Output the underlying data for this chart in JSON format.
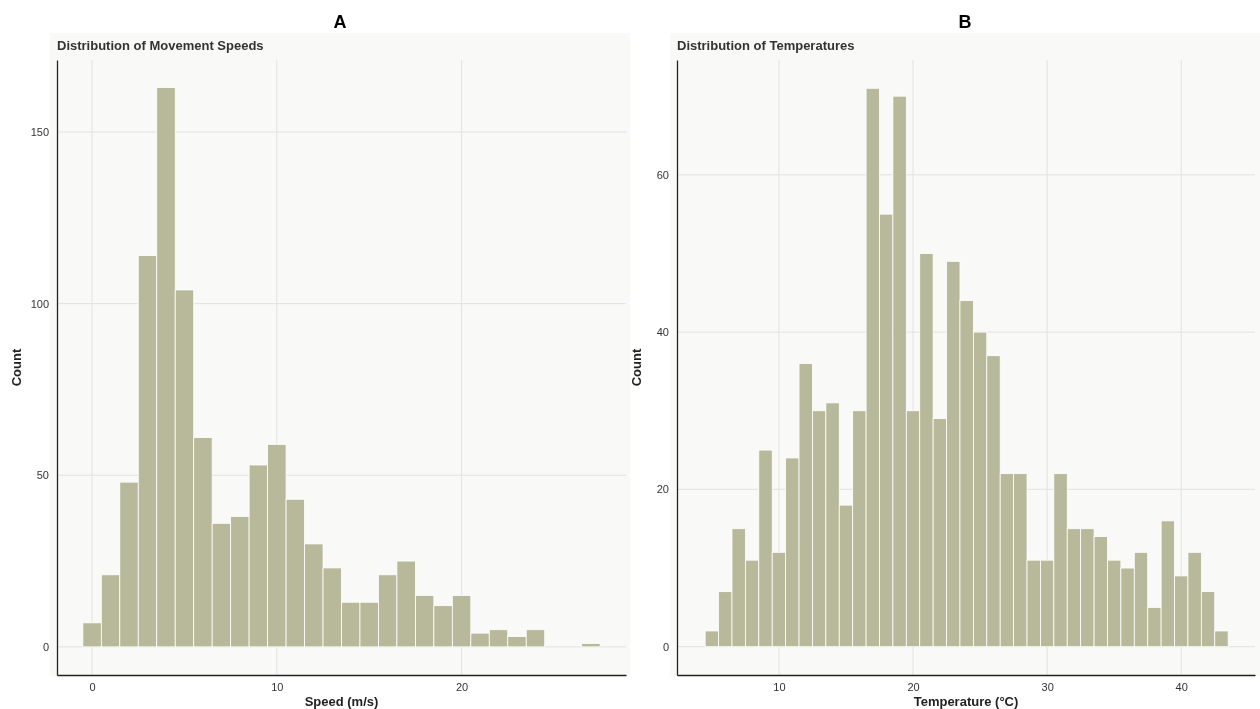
{
  "chart_data": [
    {
      "type": "histogram",
      "title": "A",
      "subtitle": "Distribution of Movement Speeds",
      "xlabel": "Speed (m/s)",
      "ylabel": "Count",
      "color": "#b7b99a",
      "grid": true,
      "bins": [
        -0.5,
        0.5,
        1.5,
        2.5,
        3.5,
        4.5,
        5.5,
        6.5,
        7.5,
        8.5,
        9.5,
        10.5,
        11.5,
        12.5,
        13.5,
        14.5,
        15.5,
        16.5,
        17.5,
        18.5,
        19.5,
        20.5,
        21.5,
        22.5,
        23.5,
        24.5,
        25.5,
        26.5,
        27.5
      ],
      "values": [
        7,
        21,
        48,
        114,
        163,
        104,
        61,
        36,
        38,
        53,
        59,
        43,
        30,
        23,
        13,
        13,
        21,
        25,
        15,
        12,
        15,
        4,
        5,
        3,
        5,
        0,
        0,
        1
      ],
      "xlim": [
        -1.9,
        28.9
      ],
      "ylim": [
        -8.2,
        171
      ],
      "xticks": [
        0,
        10,
        20
      ],
      "yticks": [
        0,
        50,
        100,
        150
      ]
    },
    {
      "type": "histogram",
      "title": "B",
      "subtitle": "Distribution of Temperatures",
      "xlabel": "Temperature (°C)",
      "ylabel": "Count",
      "color": "#b7b99a",
      "grid": true,
      "bins": [
        4.5,
        5.5,
        6.5,
        7.5,
        8.5,
        9.5,
        10.5,
        11.5,
        12.5,
        13.5,
        14.5,
        15.5,
        16.5,
        17.5,
        18.5,
        19.5,
        20.5,
        21.5,
        22.5,
        23.5,
        24.5,
        25.5,
        26.5,
        27.5,
        28.5,
        29.5,
        30.5,
        31.5,
        32.5,
        33.5,
        34.5,
        35.5,
        36.5,
        37.5,
        38.5,
        39.5,
        40.5,
        41.5,
        42.5,
        43.5
      ],
      "values": [
        2,
        7,
        15,
        11,
        25,
        12,
        24,
        36,
        30,
        31,
        18,
        30,
        71,
        55,
        70,
        30,
        50,
        29,
        49,
        44,
        40,
        37,
        22,
        22,
        11,
        11,
        22,
        15,
        15,
        14,
        11,
        10,
        12,
        5,
        16,
        9,
        12,
        7,
        2
      ],
      "xlim": [
        2.4,
        45.5
      ],
      "ylim": [
        -3.6,
        74.6
      ],
      "xticks": [
        10,
        20,
        30,
        40
      ],
      "yticks": [
        0,
        20,
        40,
        60
      ]
    }
  ]
}
